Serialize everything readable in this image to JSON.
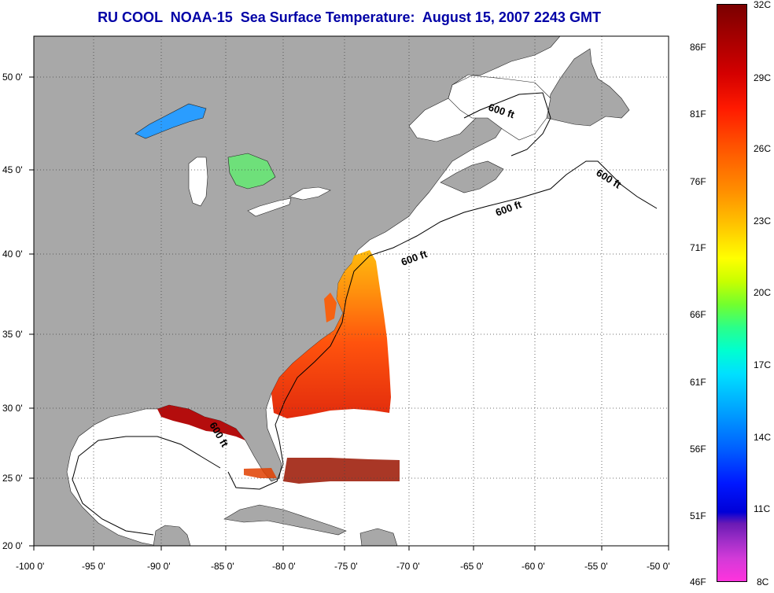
{
  "title": "RU COOL  NOAA-15  Sea Surface Temperature:  August 15, 2007 2243 GMT",
  "map": {
    "lon_labels": [
      "-100 0'",
      "-95 0'",
      "-90 0'",
      "-85 0'",
      "-80 0'",
      "-75 0'",
      "-70 0'",
      "-65 0'",
      "-60 0'",
      "-55 0'",
      "-50 0'"
    ],
    "lat_labels": [
      "50 0'",
      "45 0'",
      "40 0'",
      "35 0'",
      "30 0'",
      "25 0'",
      "20 0'"
    ],
    "contour_labels": [
      "600 ft",
      "600 ft",
      "600 ft",
      "600 ft",
      "600 ft"
    ],
    "land_color": "#a8a8a8",
    "ocean_color": "#ffffff"
  },
  "colorbar": {
    "celsius_labels": [
      "32C",
      "29C",
      "26C",
      "23C",
      "20C",
      "17C",
      "14C",
      "11C",
      "8C"
    ],
    "fahrenheit_labels": [
      "86F",
      "81F",
      "76F",
      "71F",
      "66F",
      "61F",
      "56F",
      "51F",
      "46F"
    ]
  }
}
